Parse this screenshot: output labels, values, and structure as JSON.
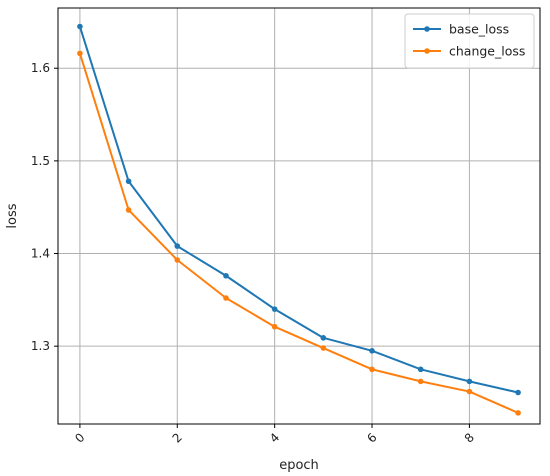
{
  "chart_data": {
    "type": "line",
    "title": "",
    "xlabel": "epoch",
    "ylabel": "loss",
    "xlim": [
      -0.45,
      9.45
    ],
    "ylim": [
      1.216,
      1.665
    ],
    "xticks": [
      0,
      2,
      4,
      6,
      8
    ],
    "xtick_labels": [
      "0",
      "2",
      "4",
      "6",
      "8"
    ],
    "yticks": [
      1.3,
      1.4,
      1.5,
      1.6
    ],
    "ytick_labels": [
      "1.3",
      "1.4",
      "1.5",
      "1.6"
    ],
    "grid": true,
    "legend_position": "top-right",
    "x": [
      0,
      1,
      2,
      3,
      4,
      5,
      6,
      7,
      8,
      9
    ],
    "series": [
      {
        "name": "base_loss",
        "color": "#1f77b4",
        "values": [
          1.645,
          1.478,
          1.408,
          1.376,
          1.34,
          1.309,
          1.295,
          1.275,
          1.262,
          1.25
        ]
      },
      {
        "name": "change_loss",
        "color": "#ff7f0e",
        "values": [
          1.616,
          1.447,
          1.393,
          1.352,
          1.321,
          1.298,
          1.275,
          1.262,
          1.251,
          1.228
        ]
      }
    ]
  }
}
